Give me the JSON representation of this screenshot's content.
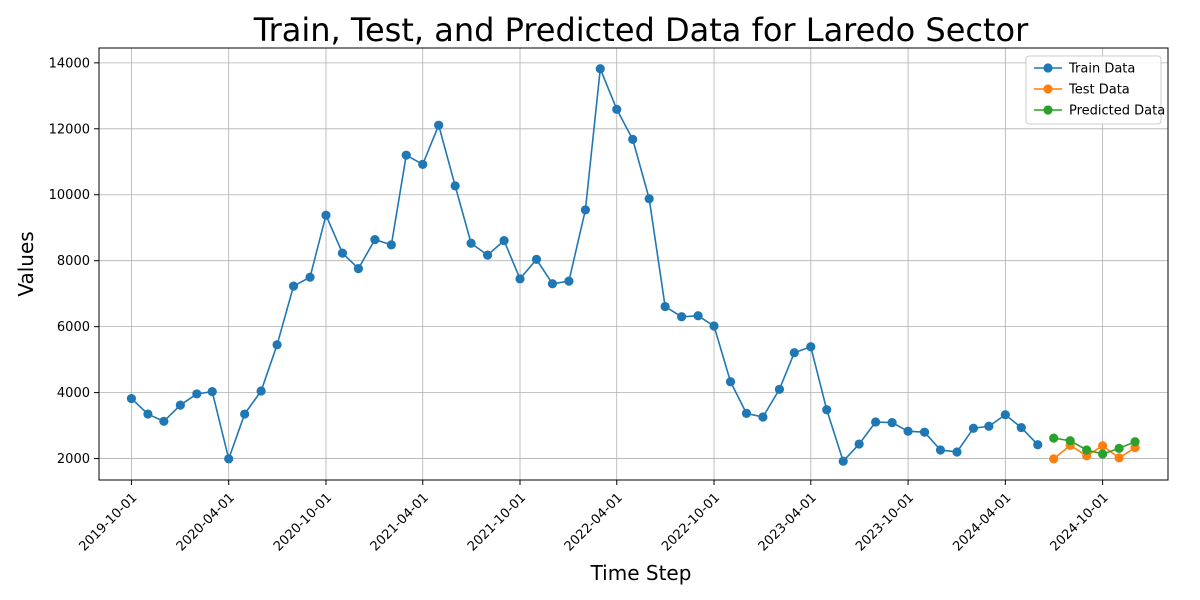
{
  "chart_data": {
    "type": "line",
    "title": "Train, Test, and Predicted Data for Laredo Sector",
    "xlabel": "Time Step",
    "ylabel": "Values",
    "x_tick_labels": [
      "2019-10-01",
      "2020-04-01",
      "2020-10-01",
      "2021-04-01",
      "2021-10-01",
      "2022-04-01",
      "2022-10-01",
      "2023-04-01",
      "2023-10-01",
      "2024-04-01",
      "2024-10-01"
    ],
    "y_tick_labels": [
      "2000",
      "4000",
      "6000",
      "8000",
      "10000",
      "12000",
      "14000"
    ],
    "ylim": [
      1350,
      14450
    ],
    "xlim": [
      "2019-08-01",
      "2025-02-01"
    ],
    "grid": true,
    "legend_position": "top-right",
    "series": [
      {
        "name": "Train Data",
        "color": "#1f77b4",
        "points": [
          [
            "2019-10-01",
            3820
          ],
          [
            "2019-11-01",
            3350
          ],
          [
            "2019-12-01",
            3130
          ],
          [
            "2020-01-01",
            3620
          ],
          [
            "2020-02-01",
            3960
          ],
          [
            "2020-03-01",
            4030
          ],
          [
            "2020-04-01",
            1990
          ],
          [
            "2020-05-01",
            3350
          ],
          [
            "2020-06-01",
            4050
          ],
          [
            "2020-07-01",
            5450
          ],
          [
            "2020-08-01",
            7230
          ],
          [
            "2020-09-01",
            7500
          ],
          [
            "2020-10-01",
            9380
          ],
          [
            "2020-11-01",
            8230
          ],
          [
            "2020-12-01",
            7760
          ],
          [
            "2021-01-01",
            8640
          ],
          [
            "2021-02-01",
            8480
          ],
          [
            "2021-03-01",
            11200
          ],
          [
            "2021-04-01",
            10920
          ],
          [
            "2021-05-01",
            12110
          ],
          [
            "2021-06-01",
            10270
          ],
          [
            "2021-07-01",
            8530
          ],
          [
            "2021-08-01",
            8170
          ],
          [
            "2021-09-01",
            8610
          ],
          [
            "2021-10-01",
            7450
          ],
          [
            "2021-11-01",
            8040
          ],
          [
            "2021-12-01",
            7300
          ],
          [
            "2022-01-01",
            7380
          ],
          [
            "2022-02-01",
            9540
          ],
          [
            "2022-03-01",
            13820
          ],
          [
            "2022-04-01",
            12590
          ],
          [
            "2022-05-01",
            11680
          ],
          [
            "2022-06-01",
            9880
          ],
          [
            "2022-07-01",
            6610
          ],
          [
            "2022-08-01",
            6300
          ],
          [
            "2022-09-01",
            6330
          ],
          [
            "2022-10-01",
            6020
          ],
          [
            "2022-11-01",
            4330
          ],
          [
            "2022-12-01",
            3370
          ],
          [
            "2023-01-01",
            3260
          ],
          [
            "2023-02-01",
            4100
          ],
          [
            "2023-03-01",
            5210
          ],
          [
            "2023-04-01",
            5390
          ],
          [
            "2023-05-01",
            3480
          ],
          [
            "2023-06-01",
            1920
          ],
          [
            "2023-07-01",
            2440
          ],
          [
            "2023-08-01",
            3110
          ],
          [
            "2023-09-01",
            3090
          ],
          [
            "2023-10-01",
            2830
          ],
          [
            "2023-11-01",
            2800
          ],
          [
            "2023-12-01",
            2260
          ],
          [
            "2024-01-01",
            2200
          ],
          [
            "2024-02-01",
            2920
          ],
          [
            "2024-03-01",
            2980
          ],
          [
            "2024-04-01",
            3330
          ],
          [
            "2024-05-01",
            2940
          ],
          [
            "2024-06-01",
            2420
          ]
        ]
      },
      {
        "name": "Test Data",
        "color": "#ff7f0e",
        "points": [
          [
            "2024-07-01",
            1990
          ],
          [
            "2024-08-01",
            2400
          ],
          [
            "2024-09-01",
            2080
          ],
          [
            "2024-10-01",
            2390
          ],
          [
            "2024-11-01",
            2020
          ],
          [
            "2024-12-01",
            2330
          ]
        ]
      },
      {
        "name": "Predicted Data",
        "color": "#2ca02c",
        "points": [
          [
            "2024-07-01",
            2620
          ],
          [
            "2024-08-01",
            2540
          ],
          [
            "2024-09-01",
            2260
          ],
          [
            "2024-10-01",
            2140
          ],
          [
            "2024-11-01",
            2310
          ],
          [
            "2024-12-01",
            2510
          ]
        ]
      }
    ]
  }
}
